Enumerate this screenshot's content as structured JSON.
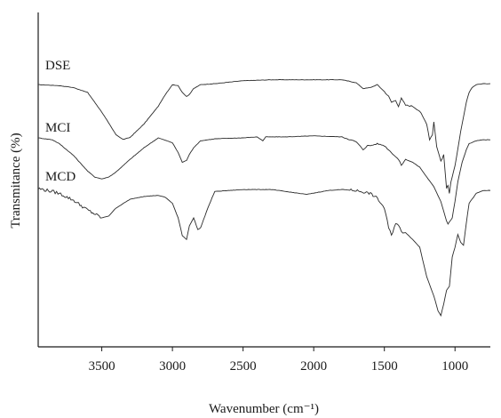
{
  "chart_data": {
    "type": "line",
    "title": "",
    "xlabel": "Wavenumber (cm⁻¹)",
    "ylabel": "Transmitance (%)",
    "x_reversed": true,
    "xlim": [
      3950,
      750
    ],
    "xticks": [
      3500,
      3000,
      2500,
      2000,
      1500,
      1000
    ],
    "grid": false,
    "legend": "none",
    "series": [
      {
        "name": "DSE",
        "x": [
          3950,
          3800,
          3700,
          3600,
          3500,
          3400,
          3350,
          3300,
          3200,
          3100,
          3050,
          3000,
          2960,
          2930,
          2900,
          2880,
          2850,
          2800,
          2700,
          2500,
          2300,
          2200,
          2000,
          1800,
          1700,
          1650,
          1600,
          1550,
          1500,
          1470,
          1450,
          1420,
          1400,
          1380,
          1350,
          1300,
          1250,
          1200,
          1180,
          1160,
          1150,
          1130,
          1100,
          1080,
          1060,
          1050,
          1040,
          1030,
          1000,
          980,
          960,
          920,
          900,
          880,
          850,
          800,
          750
        ],
        "y": [
          -2,
          -3,
          -5,
          -10,
          -30,
          -53,
          -58,
          -56,
          -42,
          -24,
          -12,
          -2,
          -3,
          -10,
          -14,
          -12,
          -6,
          -2,
          -1,
          2,
          3,
          3,
          3,
          3,
          0,
          -6,
          -5,
          -2,
          -9,
          -14,
          -20,
          -18,
          -24,
          -16,
          -23,
          -24,
          -29,
          -42,
          -58,
          -53,
          -40,
          -65,
          -80,
          -74,
          -108,
          -105,
          -113,
          -102,
          -85,
          -68,
          -50,
          -20,
          -10,
          -5,
          -2,
          -1,
          -1
        ]
      },
      {
        "name": "MCI",
        "x": [
          3950,
          3850,
          3800,
          3700,
          3600,
          3550,
          3500,
          3450,
          3400,
          3300,
          3200,
          3100,
          3000,
          2960,
          2930,
          2900,
          2880,
          2850,
          2800,
          2700,
          2500,
          2400,
          2360,
          2340,
          2300,
          2200,
          2000,
          1800,
          1700,
          1650,
          1620,
          1600,
          1550,
          1500,
          1450,
          1400,
          1380,
          1350,
          1300,
          1250,
          1200,
          1150,
          1100,
          1080,
          1060,
          1050,
          1040,
          1020,
          1000,
          980,
          950,
          920,
          900,
          850,
          800,
          750
        ],
        "y": [
          0,
          -2,
          -6,
          -18,
          -34,
          -40,
          -42,
          -40,
          -35,
          -22,
          -10,
          0,
          -5,
          -15,
          -25,
          -23,
          -17,
          -10,
          -3,
          -1,
          0,
          1,
          -3,
          1,
          1,
          1,
          2,
          1,
          -4,
          -12,
          -8,
          -8,
          -6,
          -8,
          -15,
          -22,
          -28,
          -22,
          -25,
          -30,
          -40,
          -50,
          -65,
          -75,
          -85,
          -88,
          -86,
          -82,
          -65,
          -45,
          -25,
          -12,
          -6,
          -3,
          -2,
          -2
        ]
      },
      {
        "name": "MCD",
        "x": [
          3950,
          3850,
          3800,
          3700,
          3600,
          3500,
          3450,
          3400,
          3300,
          3200,
          3100,
          3050,
          3000,
          2960,
          2930,
          2900,
          2880,
          2850,
          2820,
          2800,
          2750,
          2700,
          2500,
          2300,
          2200,
          2050,
          1900,
          1800,
          1700,
          1600,
          1550,
          1500,
          1470,
          1450,
          1420,
          1400,
          1380,
          1350,
          1300,
          1250,
          1200,
          1150,
          1120,
          1100,
          1080,
          1060,
          1040,
          1020,
          1000,
          980,
          960,
          940,
          920,
          900,
          850,
          800,
          750
        ],
        "y": [
          0,
          -3,
          -5,
          -12,
          -22,
          -30,
          -28,
          -20,
          -11,
          -8,
          -7,
          -9,
          -15,
          -30,
          -48,
          -52,
          -38,
          -30,
          -42,
          -40,
          -20,
          -3,
          -1,
          -1,
          -3,
          -6,
          -2,
          -1,
          -2,
          -5,
          -10,
          -20,
          -40,
          -48,
          -35,
          -38,
          -44,
          -45,
          -52,
          -60,
          -90,
          -110,
          -125,
          -130,
          -118,
          -104,
          -100,
          -70,
          -60,
          -47,
          -55,
          -58,
          -35,
          -15,
          -5,
          -2,
          -2
        ]
      }
    ]
  }
}
